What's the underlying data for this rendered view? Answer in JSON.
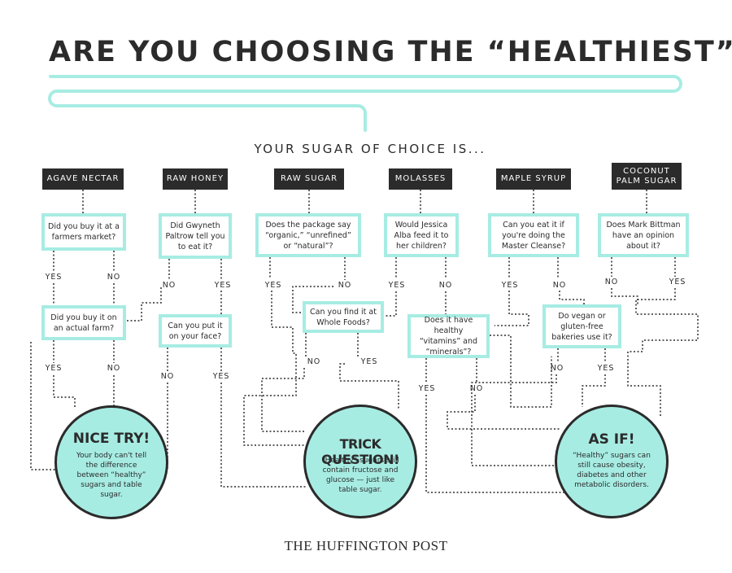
{
  "title": "ARE YOU CHOOSING THE “HEALTHIEST” SUGAR?",
  "subtitle": "YOUR SUGAR OF CHOICE IS...",
  "colors": {
    "accent": "#a7ece3",
    "dark": "#2b2b2b"
  },
  "categories": [
    "AGAVE NECTAR",
    "RAW HONEY",
    "RAW SUGAR",
    "MOLASSES",
    "MAPLE SYRUP",
    "COCONUT\nPALM SUGAR"
  ],
  "questions": {
    "agave_market": "Did you buy it at a farmers market?",
    "agave_farm": "Did you buy it on an actual farm?",
    "honey_paltrow": "Did Gwyneth Paltrow tell you to eat it?",
    "honey_face": "Can you put it on your face?",
    "raw_package": "Does the package say “organic,” “unrefined” or “natural”?",
    "raw_wholefoods": "Can you find it at Whole Foods?",
    "molasses_alba": "Would Jessica Alba feed it to her children?",
    "molasses_vitamins": "Does it have healthy “vitamins” and “minerals”?",
    "maple_cleanse": "Can you eat it if you're doing the Master Cleanse?",
    "maple_vegan": "Do vegan or gluten-free bakeries use it?",
    "coconut_bittman": "Does  Mark Bittman have an opinion about it?"
  },
  "answers": {
    "yes": "YES",
    "no": "NO"
  },
  "outcomes": [
    {
      "title": "NICE TRY!",
      "body": "Your body can't tell the difference between “healthy” sugars and table sugar."
    },
    {
      "title": "TRICK QUESTION!",
      "body": "“Healthy” sugars still contain fructose and glucose — just like table sugar."
    },
    {
      "title": "AS IF!",
      "body": "“Healthy” sugars can still cause obesity, diabetes and other metabolic disorders."
    }
  ],
  "footer": "THE HUFFINGTON POST"
}
